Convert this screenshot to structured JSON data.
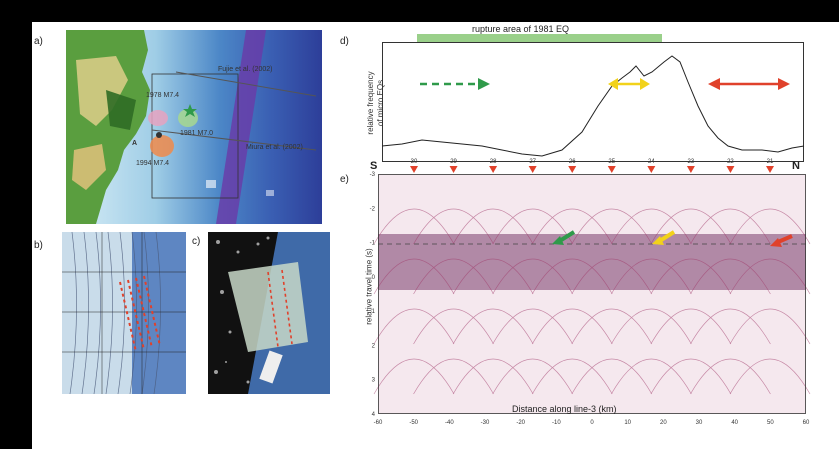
{
  "panels": {
    "a": {
      "label": "a)",
      "annotations": {
        "fujie": "Fujie et al. (2002)",
        "m1978": "1978 M7.4",
        "m1981": "1981 M7.0",
        "miura": "Miura et al. (2002)",
        "m1994": "1994 M7.4",
        "point_a": "A"
      }
    },
    "b": {
      "label": "b)"
    },
    "c": {
      "label": "c)"
    },
    "d": {
      "label": "d)",
      "rupture_label": "rupture area of 1981 EQ",
      "ylabel_line1": "relative frequency",
      "ylabel_line2": "of micro EQs",
      "arrow_colors": {
        "green": "#2f9a4a",
        "yellow": "#f2d21a",
        "red": "#e0412b"
      }
    },
    "e": {
      "label": "e)",
      "south": "S",
      "north": "N",
      "ylabel": "relative travel time (s)",
      "xlabel": "Distance along line-3 (km)",
      "station_labels": [
        "30",
        "29",
        "28",
        "27",
        "26",
        "25",
        "24",
        "23",
        "22",
        "21"
      ],
      "x_ticks": [
        "-60",
        "-50",
        "-40",
        "-30",
        "-20",
        "-10",
        "0",
        "10",
        "20",
        "30",
        "40",
        "50",
        "60"
      ],
      "y_ticks": [
        "-3",
        "-2",
        "-1",
        "0",
        "1",
        "2",
        "3",
        "4"
      ]
    }
  }
}
